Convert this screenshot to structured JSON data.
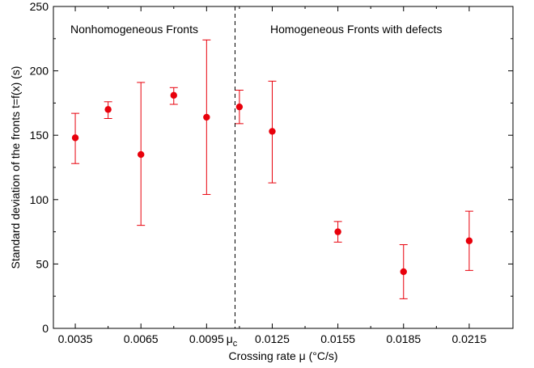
{
  "chart_data": {
    "type": "scatter",
    "xlabel": "Crossing rate μ (°C/s)",
    "ylabel": "Standard deviation of the fronts t=f(x) (s)",
    "xlim": [
      0.0025,
      0.0235
    ],
    "ylim": [
      0,
      250
    ],
    "x_ticks": [
      0.0035,
      0.0065,
      0.0095,
      0.0125,
      0.0155,
      0.0185,
      0.0215
    ],
    "x_tick_labels": [
      "0.0035",
      "0.0065",
      "0.0095",
      "0.0125",
      "0.0155",
      "0.0185",
      "0.0215"
    ],
    "y_ticks": [
      0,
      50,
      100,
      150,
      200,
      250
    ],
    "y_tick_labels": [
      "0",
      "50",
      "100",
      "150",
      "200",
      "250"
    ],
    "grid": false,
    "marker_color": "#e8000b",
    "critical_line": {
      "x": 0.0108,
      "label_main": "μ",
      "label_sub": "c"
    },
    "annotations": [
      {
        "text": "Nonhomogeneous Fronts"
      },
      {
        "text": "Homogeneous Fronts with defects"
      }
    ],
    "series": [
      {
        "points": [
          {
            "x": 0.0035,
            "y": 148,
            "low": 128,
            "high": 167
          },
          {
            "x": 0.005,
            "y": 170,
            "low": 163,
            "high": 176
          },
          {
            "x": 0.0065,
            "y": 135,
            "low": 80,
            "high": 191
          },
          {
            "x": 0.008,
            "y": 181,
            "low": 174,
            "high": 187
          },
          {
            "x": 0.0095,
            "y": 164,
            "low": 104,
            "high": 224
          },
          {
            "x": 0.011,
            "y": 172,
            "low": 159,
            "high": 185
          },
          {
            "x": 0.0125,
            "y": 153,
            "low": 113,
            "high": 192
          },
          {
            "x": 0.0155,
            "y": 75,
            "low": 67,
            "high": 83
          },
          {
            "x": 0.0185,
            "y": 44,
            "low": 23,
            "high": 65
          },
          {
            "x": 0.0215,
            "y": 68,
            "low": 45,
            "high": 91
          }
        ]
      }
    ]
  }
}
